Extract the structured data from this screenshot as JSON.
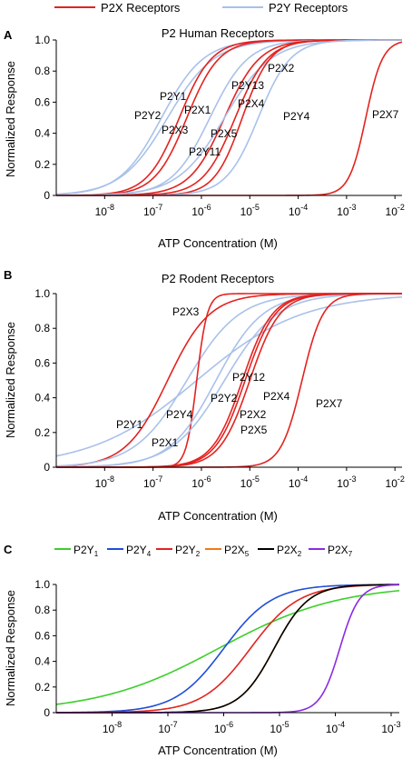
{
  "chart_data": [
    {
      "panel": "A",
      "type": "line",
      "title": "P2 Human Receptors",
      "xlabel": "ATP Concentration (M)",
      "ylabel": "Normalized Response",
      "xscale": "log",
      "xlim": [
        1e-09,
        0.014
      ],
      "ylim": [
        0,
        1
      ],
      "grid": false,
      "legend": {
        "position": "top",
        "entries": [
          {
            "name": "P2X Receptors",
            "color": "#e3231f"
          },
          {
            "name": "P2Y Receptors",
            "color": "#a9c1ea"
          }
        ]
      },
      "x_tick_labels": [
        "10-8",
        "10-7",
        "10-6",
        "10-5",
        "10-4",
        "10-3",
        "10-2"
      ],
      "y_tick_labels": [
        "0",
        "0.2",
        "0.4",
        "0.6",
        "0.8",
        "1.0"
      ],
      "series": [
        {
          "name": "P2Y1",
          "group": "P2Y Receptors",
          "color": "#a9c1ea",
          "ec50": 1.5e-07,
          "hill": 1.0
        },
        {
          "name": "P2Y2",
          "group": "P2Y Receptors",
          "color": "#a9c1ea",
          "ec50": 2e-07,
          "hill": 0.9
        },
        {
          "name": "P2X3",
          "group": "P2X Receptors",
          "color": "#e3231f",
          "ec50": 3.5e-07,
          "hill": 1.3
        },
        {
          "name": "P2X1",
          "group": "P2X Receptors",
          "color": "#e3231f",
          "ec50": 5e-07,
          "hill": 1.3
        },
        {
          "name": "P2Y11",
          "group": "P2Y Receptors",
          "color": "#a9c1ea",
          "ec50": 1.5e-06,
          "hill": 1.1
        },
        {
          "name": "P2X5",
          "group": "P2X Receptors",
          "color": "#e3231f",
          "ec50": 3e-06,
          "hill": 1.2
        },
        {
          "name": "P2Y13",
          "group": "P2Y Receptors",
          "color": "#a9c1ea",
          "ec50": 3e-06,
          "hill": 0.9
        },
        {
          "name": "P2X4",
          "group": "P2X Receptors",
          "color": "#e3231f",
          "ec50": 5e-06,
          "hill": 1.3
        },
        {
          "name": "P2X2",
          "group": "P2X Receptors",
          "color": "#e3231f",
          "ec50": 7e-06,
          "hill": 1.5
        },
        {
          "name": "P2Y4",
          "group": "P2Y Receptors",
          "color": "#a9c1ea",
          "ec50": 1.5e-05,
          "hill": 1.3
        },
        {
          "name": "P2X7",
          "group": "P2X Receptors",
          "color": "#e3231f",
          "ec50": 0.0025,
          "hill": 2.5
        }
      ],
      "labels": {
        "P2Y1": "P2Y1",
        "P2Y2": "P2Y2",
        "P2X3": "P2X3",
        "P2X1": "P2X1",
        "P2Y11": "P2Y11",
        "P2X5": "P2X5",
        "P2Y13": "P2Y13",
        "P2X4": "P2X4",
        "P2X2": "P2X2",
        "P2Y4": "P2Y4",
        "P2X7": "P2X7"
      }
    },
    {
      "panel": "B",
      "type": "line",
      "title": "P2 Rodent Receptors",
      "xlabel": "ATP Concentration (M)",
      "ylabel": "Normalized Response",
      "xscale": "log",
      "xlim": [
        1e-09,
        0.014
      ],
      "ylim": [
        0,
        1
      ],
      "grid": false,
      "x_tick_labels": [
        "10-8",
        "10-7",
        "10-6",
        "10-5",
        "10-4",
        "10-3",
        "10-2"
      ],
      "y_tick_labels": [
        "0",
        "0.2",
        "0.4",
        "0.6",
        "0.8",
        "1.0"
      ],
      "series": [
        {
          "name": "P2Y1",
          "group": "P2Y Receptors",
          "color": "#a9c1ea",
          "ec50": 8e-07,
          "hill": 0.4
        },
        {
          "name": "P2X1",
          "group": "P2X Receptors",
          "color": "#e3231f",
          "ec50": 2e-07,
          "hill": 1.0
        },
        {
          "name": "P2Y4",
          "group": "P2Y Receptors",
          "color": "#a9c1ea",
          "ec50": 5e-07,
          "hill": 0.8
        },
        {
          "name": "P2X3",
          "group": "P2X Receptors",
          "color": "#e3231f",
          "ec50": 8e-07,
          "hill": 4.0
        },
        {
          "name": "P2Y2",
          "group": "P2Y Receptors",
          "color": "#a9c1ea",
          "ec50": 2e-06,
          "hill": 0.9
        },
        {
          "name": "P2Y12",
          "group": "P2Y Receptors",
          "color": "#a9c1ea",
          "ec50": 3e-06,
          "hill": 0.8
        },
        {
          "name": "P2X2",
          "group": "P2X Receptors",
          "color": "#e3231f",
          "ec50": 7e-06,
          "hill": 1.4
        },
        {
          "name": "P2X5",
          "group": "P2X Receptors",
          "color": "#e3231f",
          "ec50": 8e-06,
          "hill": 1.4
        },
        {
          "name": "P2X4",
          "group": "P2X Receptors",
          "color": "#e3231f",
          "ec50": 1e-05,
          "hill": 1.4
        },
        {
          "name": "P2X7",
          "group": "P2X Receptors",
          "color": "#e3231f",
          "ec50": 0.00012,
          "hill": 2.0
        }
      ],
      "labels": {
        "P2X3": "P2X3",
        "P2Y12": "P2Y12",
        "P2Y2": "P2Y2",
        "P2X4": "P2X4",
        "P2Y4": "P2Y4",
        "P2X2": "P2X2",
        "P2X7": "P2X7",
        "P2Y1": "P2Y1",
        "P2X5": "P2X5",
        "P2X1": "P2X1"
      }
    },
    {
      "panel": "C",
      "type": "line",
      "xlabel": "ATP Concentration (M)",
      "ylabel": "Normalized Response",
      "xscale": "log",
      "xlim": [
        1e-09,
        0.0014
      ],
      "ylim": [
        0,
        1
      ],
      "grid": false,
      "legend": {
        "position": "top",
        "entries": [
          {
            "name": "P2Y1",
            "base": "P2Y",
            "sub": "1",
            "color": "#3ccf2a"
          },
          {
            "name": "P2Y4",
            "base": "P2Y",
            "sub": "4",
            "color": "#1f4ed8"
          },
          {
            "name": "P2Y2",
            "base": "P2Y",
            "sub": "2",
            "color": "#e3231f"
          },
          {
            "name": "P2X5",
            "base": "P2X",
            "sub": "5",
            "color": "#f07a17"
          },
          {
            "name": "P2X2",
            "base": "P2X",
            "sub": "2",
            "color": "#000000"
          },
          {
            "name": "P2X7",
            "base": "P2X",
            "sub": "7",
            "color": "#8a2be2"
          }
        ]
      },
      "x_tick_labels": [
        "10-8",
        "10-7",
        "10-6",
        "10-5",
        "10-4",
        "10-3"
      ],
      "y_tick_labels": [
        "0",
        "0.2",
        "0.4",
        "0.6",
        "0.8",
        "1.0"
      ],
      "series": [
        {
          "name": "P2Y1",
          "color": "#3ccf2a",
          "ec50": 8e-07,
          "hill": 0.4
        },
        {
          "name": "P2Y4",
          "color": "#1f4ed8",
          "ec50": 1e-06,
          "hill": 1.0
        },
        {
          "name": "P2Y2",
          "color": "#e3231f",
          "ec50": 3e-06,
          "hill": 1.0
        },
        {
          "name": "P2X5",
          "color": "#f07a17",
          "ec50": 8e-06,
          "hill": 1.4
        },
        {
          "name": "P2X2",
          "color": "#000000",
          "ec50": 8e-06,
          "hill": 1.4
        },
        {
          "name": "P2X7",
          "color": "#8a2be2",
          "ec50": 0.00012,
          "hill": 2.5
        }
      ]
    }
  ],
  "panel_letters": {
    "a": "A",
    "b": "B",
    "c": "C"
  }
}
